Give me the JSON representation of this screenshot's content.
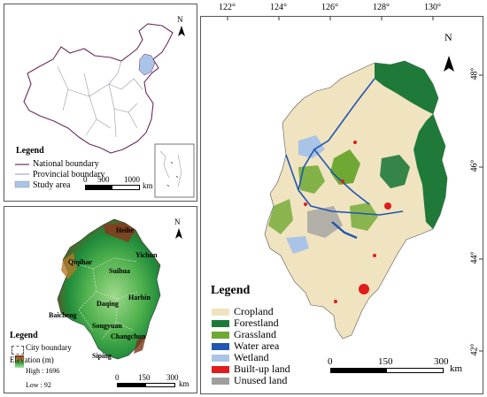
{
  "china_map": {
    "legend": {
      "title": "Legend",
      "items": [
        "National boundary",
        "Provincial boundary",
        "Study area"
      ],
      "colors": {
        "national": "#6b2a5e",
        "provincial": "#9a9aa6",
        "study": "#a9c4e6"
      }
    },
    "scale": {
      "ticks": [
        "0",
        "500",
        "1000"
      ],
      "unit": "km"
    }
  },
  "dem_map": {
    "legend": {
      "title": "Legend",
      "city_boundary": "City boundary",
      "elevation_title": "Elevation (m)",
      "high": "High : 1696",
      "low": "Low : 92"
    },
    "cities": [
      "Heihe",
      "Qiqihar",
      "Suihua",
      "Yichun",
      "Harbin",
      "Daqing",
      "Baicheng",
      "Songyuan",
      "Changchun",
      "Siping"
    ],
    "scale": {
      "ticks": [
        "0",
        "150",
        "300"
      ],
      "unit": "km"
    }
  },
  "landuse_map": {
    "lon_ticks": [
      "122°",
      "124°",
      "126°",
      "128°",
      "130°"
    ],
    "lat_ticks": [
      "48°",
      "46°",
      "44°",
      "42°"
    ],
    "legend": {
      "title": "Legend",
      "items": [
        {
          "label": "Cropland",
          "color": "#f0e3bf"
        },
        {
          "label": "Forestland",
          "color": "#1f7a3a"
        },
        {
          "label": "Grassland",
          "color": "#6fa832"
        },
        {
          "label": "Water area",
          "color": "#1f56b2"
        },
        {
          "label": "Wetland",
          "color": "#a9c4e6"
        },
        {
          "label": "Built-up land",
          "color": "#e01c1c"
        },
        {
          "label": "Unused land",
          "color": "#9e9e9e"
        }
      ]
    },
    "scale": {
      "ticks": [
        "0",
        "150",
        "300"
      ],
      "unit": "km"
    }
  },
  "north_label": "N"
}
